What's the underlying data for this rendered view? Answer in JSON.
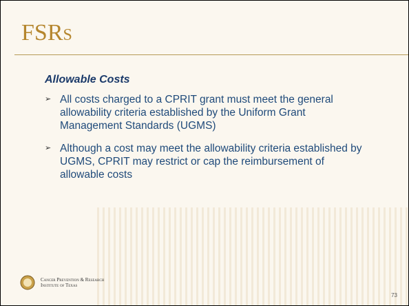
{
  "header": {
    "title": "FSRs"
  },
  "subtitle": "Allowable Costs",
  "bullets": [
    "All costs charged to a CPRIT grant must meet the general allowability criteria established by the Uniform Grant Management Standards (UGMS)",
    "Although a cost may meet the allowability criteria established by UGMS, CPRIT may restrict or cap the reimbursement of allowable costs"
  ],
  "footer": {
    "org_line1": "Cancer Prevention & Research",
    "org_line2": "Institute of Texas",
    "page_number": "73"
  }
}
